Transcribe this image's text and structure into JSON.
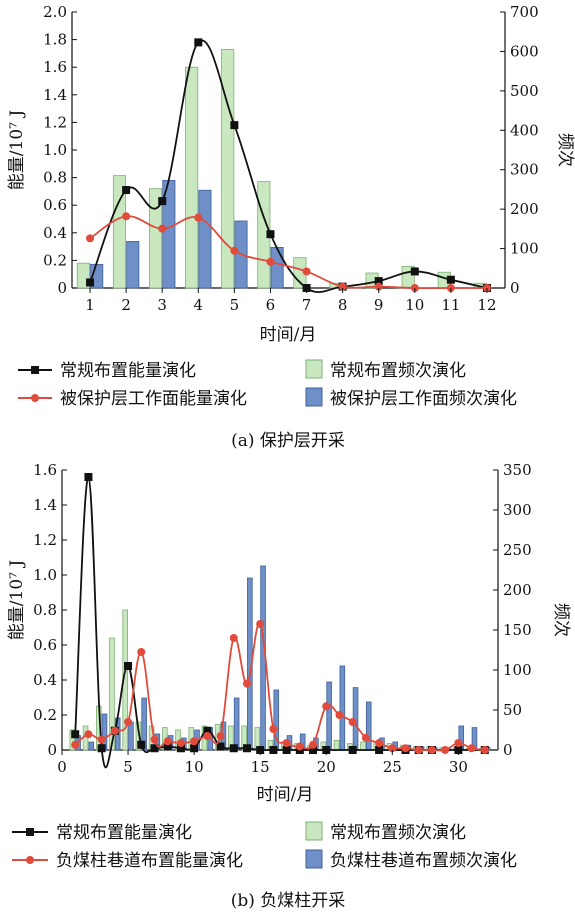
{
  "colors": {
    "normal_line": "#111111",
    "protected_line": "#e04b3c",
    "normal_bar_fill": "#c9e8c0",
    "normal_bar_stroke": "#7fae74",
    "protected_bar_fill": "#6f8fc8",
    "protected_bar_stroke": "#3f5f98"
  },
  "chart_data": [
    {
      "type": "bar+line",
      "caption": "(a)  保护层开采",
      "xlabel": "时间/月",
      "ylabel_left": "能量/10⁷ J",
      "ylabel_right": "频次",
      "x_ticks": [
        1,
        2,
        3,
        4,
        5,
        6,
        7,
        8,
        9,
        10,
        11,
        12
      ],
      "xlim": [
        0.5,
        12.5
      ],
      "ylim_left": [
        0,
        2.0
      ],
      "yticks_left": [
        "0",
        "0.2",
        "0.4",
        "0.6",
        "0.8",
        "1.0",
        "1.2",
        "1.4",
        "1.6",
        "1.8",
        "2.0"
      ],
      "ylim_right": [
        0,
        700
      ],
      "yticks_right": [
        "0",
        "100",
        "200",
        "300",
        "400",
        "500",
        "600",
        "700"
      ],
      "legend": [
        "常规布置能量演化",
        "常规布置频次演化",
        "被保护层工作面能量演化",
        "被保护层工作面频次演化"
      ],
      "series": [
        {
          "name": "常规布置能量演化",
          "kind": "line",
          "axis": "left",
          "x": [
            1,
            2,
            3,
            4,
            5,
            6,
            7,
            8,
            9,
            10,
            11,
            12
          ],
          "values": [
            0.04,
            0.71,
            0.63,
            1.78,
            1.18,
            0.39,
            0.0,
            0.01,
            0.05,
            0.12,
            0.06,
            0.0
          ]
        },
        {
          "name": "被保护层工作面能量演化",
          "kind": "line",
          "axis": "left",
          "x": [
            1,
            2,
            3,
            4,
            5,
            6,
            7,
            8,
            9,
            10,
            11,
            12
          ],
          "values": [
            0.36,
            0.52,
            0.43,
            0.51,
            0.27,
            0.19,
            0.12,
            0.01,
            0.01,
            0.0,
            0.0,
            0.0
          ]
        },
        {
          "name": "常规布置频次演化",
          "kind": "bar",
          "axis": "right",
          "x": [
            1,
            2,
            3,
            4,
            5,
            6,
            7,
            8,
            9,
            10,
            11,
            12
          ],
          "values": [
            63,
            285,
            252,
            560,
            605,
            270,
            77,
            12,
            38,
            55,
            40,
            12
          ]
        },
        {
          "name": "被保护层工作面频次演化",
          "kind": "bar",
          "axis": "right",
          "x": [
            1,
            2,
            3,
            4,
            5,
            6,
            7,
            8,
            9,
            10,
            11,
            12
          ],
          "values": [
            60,
            118,
            273,
            248,
            170,
            103,
            0,
            0,
            0,
            0,
            0,
            0
          ]
        }
      ]
    },
    {
      "type": "bar+line",
      "caption": "(b)  负煤柱开采",
      "xlabel": "时间/月",
      "ylabel_left": "能量/10⁷ J",
      "ylabel_right": "频次",
      "x_ticks": [
        0,
        5,
        10,
        15,
        20,
        25,
        30
      ],
      "xlim": [
        0,
        33
      ],
      "ylim_left": [
        0,
        1.6
      ],
      "yticks_left": [
        "0",
        "0.2",
        "0.4",
        "0.6",
        "0.8",
        "1.0",
        "1.2",
        "1.4",
        "1.6"
      ],
      "ylim_right": [
        0,
        350
      ],
      "yticks_right": [
        "0",
        "50",
        "100",
        "150",
        "200",
        "250",
        "300",
        "350"
      ],
      "legend": [
        "常规布置能量演化",
        "常规布置频次演化",
        "负煤柱巷道布置能量演化",
        "负煤柱巷道布置频次演化"
      ],
      "series": [
        {
          "name": "常规布置能量演化",
          "kind": "line",
          "axis": "left",
          "x": [
            1,
            2,
            3,
            4,
            5,
            6,
            7,
            8,
            9,
            10,
            11,
            12,
            13,
            14,
            15,
            16,
            17,
            18,
            19,
            20,
            22,
            24,
            26,
            27,
            28,
            30,
            32
          ],
          "values": [
            0.09,
            1.56,
            0.01,
            0.11,
            0.48,
            0.03,
            0.01,
            0.02,
            0.01,
            0.01,
            0.11,
            0.02,
            0.01,
            0.01,
            0.0,
            0.0,
            0.0,
            0.0,
            0.0,
            0.0,
            0.0,
            0.0,
            0.0,
            0.0,
            0.0,
            0.0,
            0.0
          ]
        },
        {
          "name": "负煤柱巷道布置能量演化",
          "kind": "line",
          "axis": "left",
          "x": [
            1,
            2,
            3,
            4,
            5,
            6,
            7,
            8,
            9,
            10,
            11,
            12,
            13,
            14,
            15,
            16,
            17,
            18,
            19,
            20,
            21,
            22,
            23,
            24,
            25,
            26,
            27,
            28,
            29,
            30,
            31,
            32
          ],
          "values": [
            0.03,
            0.09,
            0.06,
            0.11,
            0.16,
            0.56,
            0.06,
            0.05,
            0.04,
            0.05,
            0.08,
            0.08,
            0.64,
            0.38,
            0.72,
            0.12,
            0.04,
            0.02,
            0.03,
            0.25,
            0.2,
            0.16,
            0.07,
            0.04,
            0.01,
            0.01,
            0.0,
            0.0,
            0.0,
            0.04,
            0.01,
            0.0
          ]
        },
        {
          "name": "常规布置频次演化",
          "kind": "bar",
          "axis": "right",
          "x": [
            1,
            2,
            3,
            4,
            5,
            6,
            7,
            8,
            9,
            10,
            11,
            12,
            13,
            14,
            15,
            16,
            17,
            18,
            19,
            20,
            21,
            22,
            23,
            24,
            25,
            26,
            27,
            28,
            29,
            30,
            31,
            32
          ],
          "values": [
            25,
            30,
            55,
            140,
            175,
            35,
            30,
            28,
            25,
            28,
            30,
            32,
            30,
            30,
            28,
            12,
            10,
            8,
            6,
            10,
            12,
            8,
            10,
            10,
            8,
            6,
            4,
            4,
            3,
            3,
            2,
            2
          ]
        },
        {
          "name": "负煤柱巷道布置频次演化",
          "kind": "bar",
          "axis": "right",
          "x": [
            1,
            2,
            3,
            4,
            5,
            6,
            7,
            8,
            9,
            10,
            11,
            12,
            13,
            14,
            15,
            16,
            17,
            18,
            19,
            20,
            21,
            22,
            23,
            24,
            25,
            26,
            27,
            28,
            29,
            30,
            31,
            32
          ],
          "values": [
            18,
            10,
            45,
            40,
            35,
            65,
            20,
            18,
            15,
            25,
            28,
            35,
            65,
            215,
            230,
            75,
            18,
            20,
            15,
            85,
            105,
            78,
            60,
            15,
            10,
            6,
            4,
            3,
            2,
            30,
            28,
            3
          ]
        }
      ]
    }
  ]
}
